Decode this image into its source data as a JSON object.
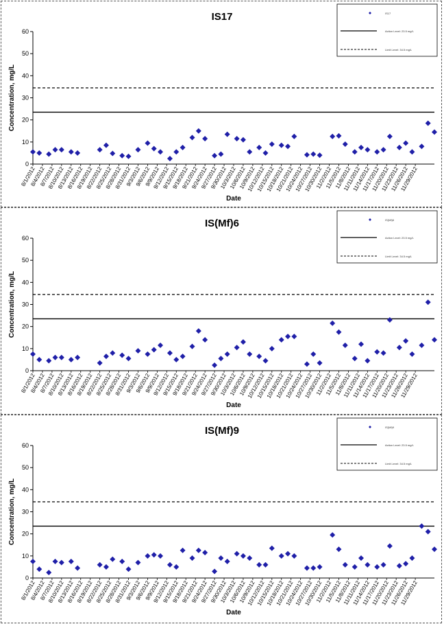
{
  "chart_data": [
    {
      "type": "scatter",
      "title": "IS17",
      "xlabel": "Date",
      "ylabel": "Concentration, mg/L",
      "ylim": [
        0,
        60
      ],
      "yticks": [
        0,
        10,
        20,
        30,
        40,
        50,
        60
      ],
      "xticks": [
        "8/1/2012",
        "8/4/2012",
        "8/7/2012",
        "8/10/2012",
        "8/13/2012",
        "8/16/2012",
        "8/19/2012",
        "8/22/2012",
        "8/25/2012",
        "8/28/2012",
        "8/31/2012",
        "9/3/2012",
        "9/6/2012",
        "9/9/2012",
        "9/12/2012",
        "9/15/2012",
        "9/18/2012",
        "9/21/2012",
        "9/24/2012",
        "9/27/2012",
        "9/30/2012",
        "10/3/2012",
        "10/6/2012",
        "10/9/2012",
        "10/12/2012",
        "10/15/2012",
        "10/18/2012",
        "10/21/2012",
        "10/24/2012",
        "10/27/2012",
        "10/30/2012",
        "11/2/2012",
        "11/5/2012",
        "11/8/2012",
        "11/11/2012",
        "11/14/2012",
        "11/17/2012",
        "11/20/2012",
        "11/23/2012",
        "11/26/2012",
        "11/29/2012"
      ],
      "action_level": 23.5,
      "limit_line": 34.5,
      "legend": [
        "IS17",
        "Action Level: 23.5 mg/L",
        "Limit Level: 34.5 mg/L"
      ],
      "legend_position": "top-right",
      "series": [
        {
          "marker": "diamond",
          "color": "#1F1FA8",
          "points": [
            [
              "8/1/2012",
              5.5
            ],
            [
              "8/3/2012",
              5.0
            ],
            [
              "8/6/2012",
              4.5
            ],
            [
              "8/8/2012",
              6.5
            ],
            [
              "8/10/2012",
              6.5
            ],
            [
              "8/13/2012",
              5.5
            ],
            [
              "8/15/2012",
              5.0
            ],
            [
              "8/22/2012",
              6.5
            ],
            [
              "8/24/2012",
              8.5
            ],
            [
              "8/26/2012",
              4.8
            ],
            [
              "8/29/2012",
              3.8
            ],
            [
              "8/31/2012",
              3.5
            ],
            [
              "9/3/2012",
              6.5
            ],
            [
              "9/6/2012",
              9.5
            ],
            [
              "9/8/2012",
              7.0
            ],
            [
              "9/10/2012",
              5.5
            ],
            [
              "9/13/2012",
              2.5
            ],
            [
              "9/15/2012",
              5.5
            ],
            [
              "9/17/2012",
              7.5
            ],
            [
              "9/20/2012",
              12.0
            ],
            [
              "9/22/2012",
              15.0
            ],
            [
              "9/24/2012",
              11.5
            ],
            [
              "9/27/2012",
              3.8
            ],
            [
              "9/29/2012",
              4.5
            ],
            [
              "10/1/2012",
              13.5
            ],
            [
              "10/4/2012",
              11.5
            ],
            [
              "10/6/2012",
              11.0
            ],
            [
              "10/8/2012",
              5.5
            ],
            [
              "10/11/2012",
              7.5
            ],
            [
              "10/13/2012",
              5.0
            ],
            [
              "10/15/2012",
              9.0
            ],
            [
              "10/18/2012",
              8.5
            ],
            [
              "10/20/2012",
              8.0
            ],
            [
              "10/22/2012",
              12.5
            ],
            [
              "10/26/2012",
              4.2
            ],
            [
              "10/28/2012",
              4.5
            ],
            [
              "10/30/2012",
              4.0
            ],
            [
              "11/3/2012",
              12.5
            ],
            [
              "11/5/2012",
              12.8
            ],
            [
              "11/7/2012",
              9.0
            ],
            [
              "11/10/2012",
              5.5
            ],
            [
              "11/12/2012",
              7.5
            ],
            [
              "11/14/2012",
              6.5
            ],
            [
              "11/17/2012",
              5.5
            ],
            [
              "11/19/2012",
              6.5
            ],
            [
              "11/21/2012",
              12.5
            ],
            [
              "11/24/2012",
              7.5
            ],
            [
              "11/26/2012",
              9.5
            ],
            [
              "11/28/2012",
              5.5
            ],
            [
              "12/1/2012",
              8.0
            ],
            [
              "12/3/2012",
              18.5
            ],
            [
              "12/5/2012",
              14.5
            ]
          ]
        }
      ]
    },
    {
      "type": "scatter",
      "title": "IS(Mf)6",
      "xlabel": "Date",
      "ylabel": "Concentration, mg/L",
      "ylim": [
        0,
        60
      ],
      "yticks": [
        0,
        10,
        20,
        30,
        40,
        50,
        60
      ],
      "xticks": [
        "8/1/2012",
        "8/4/2012",
        "8/7/2012",
        "8/10/2012",
        "8/13/2012",
        "8/16/2012",
        "8/19/2012",
        "8/22/2012",
        "8/25/2012",
        "8/28/2012",
        "8/31/2012",
        "9/3/2012",
        "9/6/2012",
        "9/9/2012",
        "9/12/2012",
        "9/15/2012",
        "9/18/2012",
        "9/21/2012",
        "9/24/2012",
        "9/27/2012",
        "9/30/2012",
        "10/3/2012",
        "10/6/2012",
        "10/9/2012",
        "10/12/2012",
        "10/15/2012",
        "10/18/2012",
        "10/21/2012",
        "10/24/2012",
        "10/27/2012",
        "10/30/2012",
        "11/2/2012",
        "11/5/2012",
        "11/8/2012",
        "11/11/2012",
        "11/14/2012",
        "11/17/2012",
        "11/20/2012",
        "11/23/2012",
        "11/26/2012",
        "11/29/2012"
      ],
      "action_level": 23.5,
      "limit_line": 34.5,
      "legend": [
        "IS(Mf)6",
        "Action Level: 23.5 mg/L",
        "Limit Level: 34.5 mg/L"
      ],
      "legend_position": "top-right",
      "series": [
        {
          "marker": "diamond",
          "color": "#1F1FA8",
          "points": [
            [
              "8/1/2012",
              7.5
            ],
            [
              "8/3/2012",
              5.0
            ],
            [
              "8/6/2012",
              4.5
            ],
            [
              "8/8/2012",
              6.0
            ],
            [
              "8/10/2012",
              6.0
            ],
            [
              "8/13/2012",
              5.0
            ],
            [
              "8/15/2012",
              6.0
            ],
            [
              "8/22/2012",
              3.5
            ],
            [
              "8/24/2012",
              6.5
            ],
            [
              "8/26/2012",
              8.0
            ],
            [
              "8/29/2012",
              7.0
            ],
            [
              "8/31/2012",
              5.5
            ],
            [
              "9/3/2012",
              9.0
            ],
            [
              "9/6/2012",
              7.5
            ],
            [
              "9/8/2012",
              9.5
            ],
            [
              "9/10/2012",
              11.5
            ],
            [
              "9/13/2012",
              8.0
            ],
            [
              "9/15/2012",
              5.0
            ],
            [
              "9/17/2012",
              6.5
            ],
            [
              "9/20/2012",
              11.0
            ],
            [
              "9/22/2012",
              18.0
            ],
            [
              "9/24/2012",
              14.0
            ],
            [
              "9/27/2012",
              2.5
            ],
            [
              "9/29/2012",
              5.5
            ],
            [
              "10/1/2012",
              7.5
            ],
            [
              "10/4/2012",
              10.5
            ],
            [
              "10/6/2012",
              13.0
            ],
            [
              "10/8/2012",
              7.5
            ],
            [
              "10/11/2012",
              6.5
            ],
            [
              "10/13/2012",
              4.5
            ],
            [
              "10/15/2012",
              10.0
            ],
            [
              "10/18/2012",
              14.0
            ],
            [
              "10/20/2012",
              15.5
            ],
            [
              "10/22/2012",
              15.5
            ],
            [
              "10/26/2012",
              3.0
            ],
            [
              "10/28/2012",
              7.5
            ],
            [
              "10/30/2012",
              3.5
            ],
            [
              "11/3/2012",
              21.5
            ],
            [
              "11/5/2012",
              17.5
            ],
            [
              "11/7/2012",
              11.5
            ],
            [
              "11/10/2012",
              5.5
            ],
            [
              "11/12/2012",
              12.0
            ],
            [
              "11/14/2012",
              4.5
            ],
            [
              "11/17/2012",
              8.5
            ],
            [
              "11/19/2012",
              8.0
            ],
            [
              "11/21/2012",
              23.0
            ],
            [
              "11/24/2012",
              10.5
            ],
            [
              "11/26/2012",
              13.5
            ],
            [
              "11/28/2012",
              7.5
            ],
            [
              "12/1/2012",
              11.5
            ],
            [
              "12/3/2012",
              31.0
            ],
            [
              "12/5/2012",
              14.0
            ]
          ]
        }
      ]
    },
    {
      "type": "scatter",
      "title": "IS(Mf)9",
      "xlabel": "Date",
      "ylabel": "Concentration, mg/L",
      "ylim": [
        0,
        60
      ],
      "yticks": [
        0,
        10,
        20,
        30,
        40,
        50,
        60
      ],
      "xticks": [
        "8/1/2012",
        "8/4/2012",
        "8/7/2012",
        "8/10/2012",
        "8/13/2012",
        "8/16/2012",
        "8/19/2012",
        "8/22/2012",
        "8/25/2012",
        "8/28/2012",
        "8/31/2012",
        "9/3/2012",
        "9/6/2012",
        "9/9/2012",
        "9/12/2012",
        "9/15/2012",
        "9/18/2012",
        "9/21/2012",
        "9/24/2012",
        "9/27/2012",
        "9/30/2012",
        "10/3/2012",
        "10/6/2012",
        "10/9/2012",
        "10/12/2012",
        "10/15/2012",
        "10/18/2012",
        "10/21/2012",
        "10/24/2012",
        "10/27/2012",
        "10/30/2012",
        "11/2/2012",
        "11/5/2012",
        "11/8/2012",
        "11/11/2012",
        "11/14/2012",
        "11/17/2012",
        "11/20/2012",
        "11/23/2012",
        "11/26/2012",
        "11/29/2012"
      ],
      "action_level": 23.5,
      "limit_line": 34.5,
      "legend": [
        "IS(Mf)9",
        "Action Level: 23.5 mg/L",
        "Limit Level: 34.5 mg/L"
      ],
      "legend_position": "top-right",
      "series": [
        {
          "marker": "diamond",
          "color": "#1F1FA8",
          "points": [
            [
              "8/1/2012",
              7.5
            ],
            [
              "8/3/2012",
              4.0
            ],
            [
              "8/6/2012",
              2.5
            ],
            [
              "8/8/2012",
              7.5
            ],
            [
              "8/10/2012",
              7.0
            ],
            [
              "8/13/2012",
              7.5
            ],
            [
              "8/15/2012",
              4.5
            ],
            [
              "8/22/2012",
              6.0
            ],
            [
              "8/24/2012",
              5.0
            ],
            [
              "8/26/2012",
              8.5
            ],
            [
              "8/29/2012",
              7.5
            ],
            [
              "8/31/2012",
              4.0
            ],
            [
              "9/3/2012",
              7.0
            ],
            [
              "9/6/2012",
              10.0
            ],
            [
              "9/8/2012",
              10.5
            ],
            [
              "9/10/2012",
              10.0
            ],
            [
              "9/13/2012",
              6.0
            ],
            [
              "9/15/2012",
              5.0
            ],
            [
              "9/17/2012",
              12.5
            ],
            [
              "9/20/2012",
              9.0
            ],
            [
              "9/22/2012",
              12.5
            ],
            [
              "9/24/2012",
              11.5
            ],
            [
              "9/27/2012",
              3.0
            ],
            [
              "9/29/2012",
              9.0
            ],
            [
              "10/1/2012",
              7.5
            ],
            [
              "10/4/2012",
              11.0
            ],
            [
              "10/6/2012",
              10.0
            ],
            [
              "10/8/2012",
              9.0
            ],
            [
              "10/11/2012",
              6.0
            ],
            [
              "10/13/2012",
              6.0
            ],
            [
              "10/15/2012",
              13.5
            ],
            [
              "10/18/2012",
              10.0
            ],
            [
              "10/20/2012",
              11.0
            ],
            [
              "10/22/2012",
              10.0
            ],
            [
              "10/26/2012",
              4.5
            ],
            [
              "10/28/2012",
              4.5
            ],
            [
              "10/30/2012",
              5.0
            ],
            [
              "11/3/2012",
              19.5
            ],
            [
              "11/5/2012",
              13.0
            ],
            [
              "11/7/2012",
              6.0
            ],
            [
              "11/10/2012",
              5.0
            ],
            [
              "11/12/2012",
              9.0
            ],
            [
              "11/14/2012",
              6.0
            ],
            [
              "11/17/2012",
              5.0
            ],
            [
              "11/19/2012",
              6.0
            ],
            [
              "11/21/2012",
              14.5
            ],
            [
              "11/24/2012",
              5.5
            ],
            [
              "11/26/2012",
              6.5
            ],
            [
              "11/28/2012",
              9.0
            ],
            [
              "12/1/2012",
              23.5
            ],
            [
              "12/3/2012",
              21.0
            ],
            [
              "12/5/2012",
              13.0
            ]
          ]
        }
      ]
    }
  ]
}
